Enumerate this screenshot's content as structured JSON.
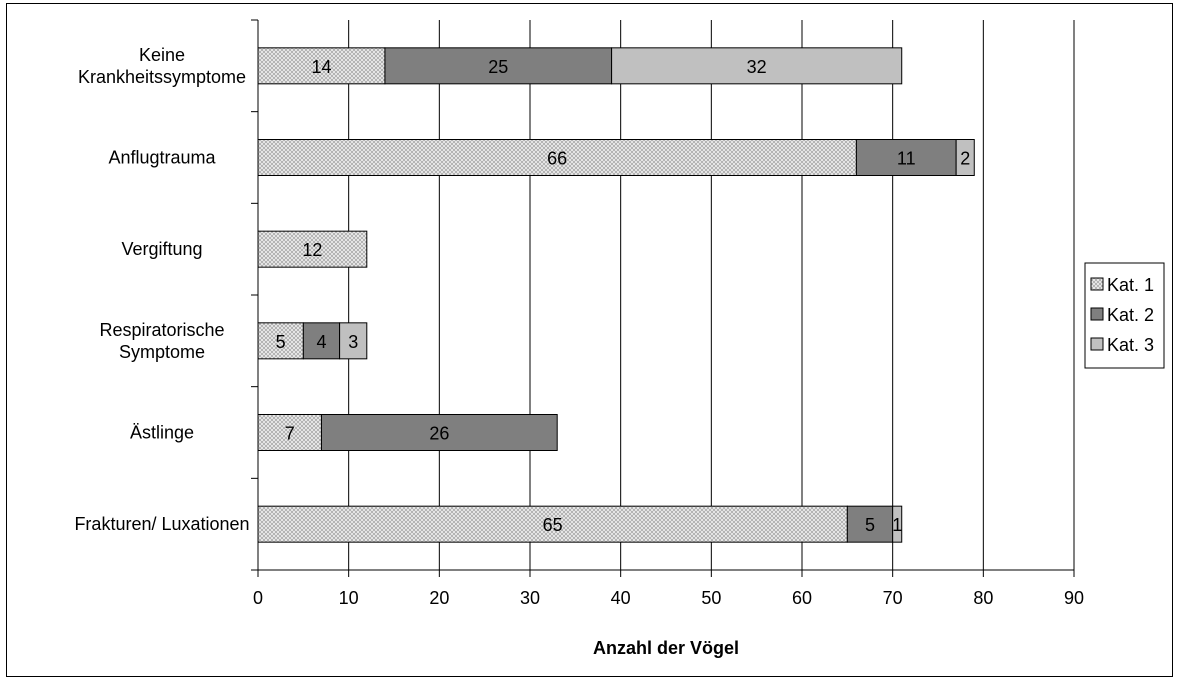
{
  "chart_data": {
    "type": "bar",
    "orientation": "horizontal",
    "stacked": true,
    "categories": [
      "Keine Krankheitssymptome",
      "Anflugtrauma",
      "Vergiftung",
      "Respiratorische Symptome",
      "Ästlinge",
      "Frakturen/ Luxationen"
    ],
    "category_lines": [
      [
        "Keine",
        "Krankheitssymptome"
      ],
      [
        "Anflugtrauma"
      ],
      [
        "Vergiftung"
      ],
      [
        "Respiratorische",
        "Symptome"
      ],
      [
        "Ästlinge"
      ],
      [
        "Frakturen/ Luxationen"
      ]
    ],
    "series": [
      {
        "name": "Kat. 1",
        "values": [
          14,
          66,
          12,
          5,
          7,
          65
        ],
        "color": "#e6e6e6",
        "pattern": "crosshatch"
      },
      {
        "name": "Kat. 2",
        "values": [
          25,
          11,
          0,
          4,
          26,
          5
        ],
        "color": "#7f7f7f",
        "pattern": "solid"
      },
      {
        "name": "Kat. 3",
        "values": [
          32,
          2,
          0,
          3,
          0,
          1
        ],
        "color": "#c0c0c0",
        "pattern": "solid"
      }
    ],
    "xlabel": "Anzahl der Vögel",
    "ylabel": "",
    "xlim": [
      0,
      90
    ],
    "xticks": [
      0,
      10,
      20,
      30,
      40,
      50,
      60,
      70,
      80,
      90
    ],
    "grid": "vertical",
    "legend_position": "right"
  }
}
